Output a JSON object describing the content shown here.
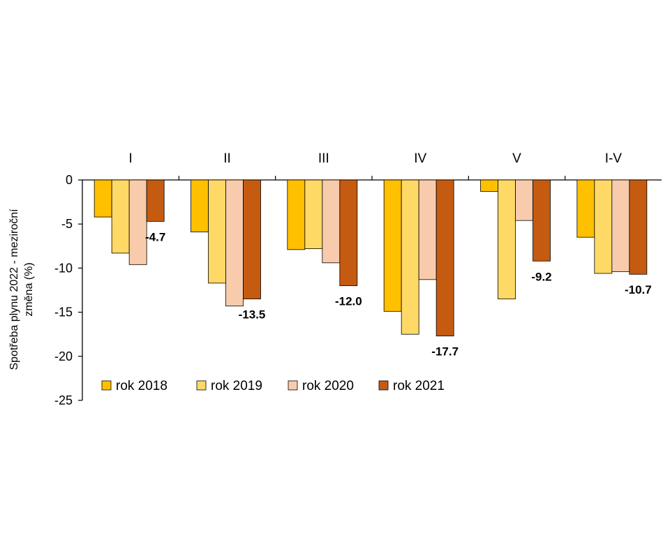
{
  "chart_data": {
    "type": "bar",
    "categories": [
      "I",
      "II",
      "III",
      "IV",
      "V",
      "I-V"
    ],
    "series": [
      {
        "name": "rok 2018",
        "color": "#FFC000",
        "values": [
          -4.2,
          -5.9,
          -7.9,
          -14.9,
          -1.3,
          -6.5
        ]
      },
      {
        "name": "rok 2019",
        "color": "#FFD966",
        "values": [
          -8.3,
          -11.7,
          -7.8,
          -17.5,
          -13.5,
          -10.6
        ]
      },
      {
        "name": "rok 2020",
        "color": "#F8CBAD",
        "values": [
          -9.6,
          -14.3,
          -9.4,
          -11.3,
          -4.6,
          -10.4
        ]
      },
      {
        "name": "rok 2021",
        "color": "#C55A11",
        "values": [
          -4.7,
          -13.5,
          -12.0,
          -17.7,
          -9.2,
          -10.7
        ]
      }
    ],
    "data_labels": {
      "series_index": 3,
      "labels": [
        "-4.7",
        "-13.5",
        "-12.0",
        "-17.7",
        "-9.2",
        "-10.7"
      ]
    },
    "ylabel_lines": [
      "Spotřeba plynu 2022 - meziroční",
      "změna (%)"
    ],
    "yticks": [
      0,
      -5,
      -10,
      -15,
      -20,
      -25
    ],
    "ylim": [
      -25,
      0
    ],
    "legend_position": "bottom-left inside",
    "grid": false,
    "category_axis_position": "top"
  }
}
